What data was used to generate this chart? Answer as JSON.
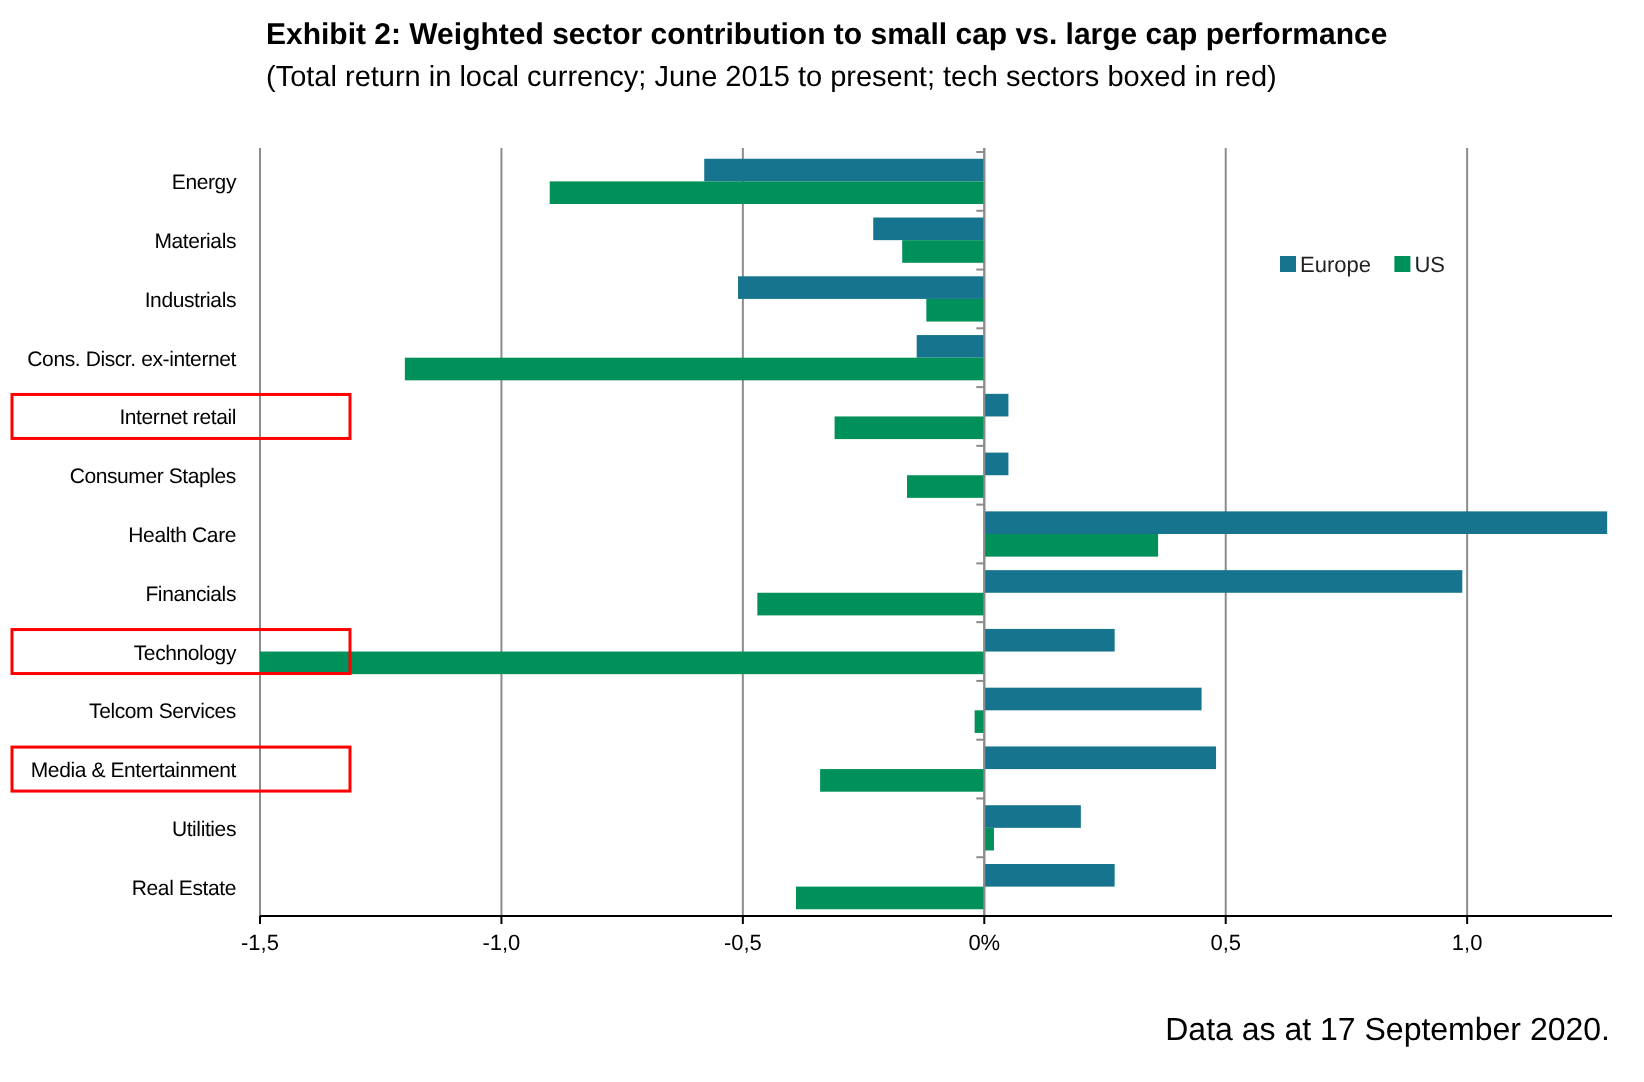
{
  "chart_data": {
    "type": "bar",
    "orientation": "horizontal",
    "title": "Exhibit 2: Weighted sector contribution to small cap vs. large cap performance",
    "subtitle": "(Total return in local currency; June 2015 to present; tech sectors boxed in red)",
    "categories": [
      "Energy",
      "Materials",
      "Industrials",
      "Cons. Discr. ex-internet",
      "Internet retail",
      "Consumer Staples",
      "Health Care",
      "Financials",
      "Technology",
      "Telcom Services",
      "Media & Entertainment",
      "Utilities",
      "Real Estate"
    ],
    "series": [
      {
        "name": "Europe",
        "color": "#17748f",
        "values": [
          -0.58,
          -0.23,
          -0.51,
          -0.14,
          0.05,
          0.05,
          1.29,
          0.99,
          0.27,
          0.45,
          0.48,
          0.2,
          0.27
        ]
      },
      {
        "name": "US",
        "color": "#009059",
        "values": [
          -0.9,
          -0.17,
          -0.12,
          -1.2,
          -0.31,
          -0.16,
          0.36,
          -0.47,
          -1.5,
          -0.02,
          -0.34,
          0.02,
          -0.39
        ]
      }
    ],
    "xlim": [
      -1.5,
      1.3
    ],
    "xticks": [
      {
        "value": -1.5,
        "label": "-1,5"
      },
      {
        "value": -1.0,
        "label": "-1,0"
      },
      {
        "value": -0.5,
        "label": "-0,5"
      },
      {
        "value": 0,
        "label": "0%"
      },
      {
        "value": 0.5,
        "label": "0,5"
      },
      {
        "value": 1.0,
        "label": "1,0"
      }
    ],
    "grid": "x",
    "legend": "top right",
    "annotations": [
      "Data as at 17 September 2020."
    ]
  }
}
